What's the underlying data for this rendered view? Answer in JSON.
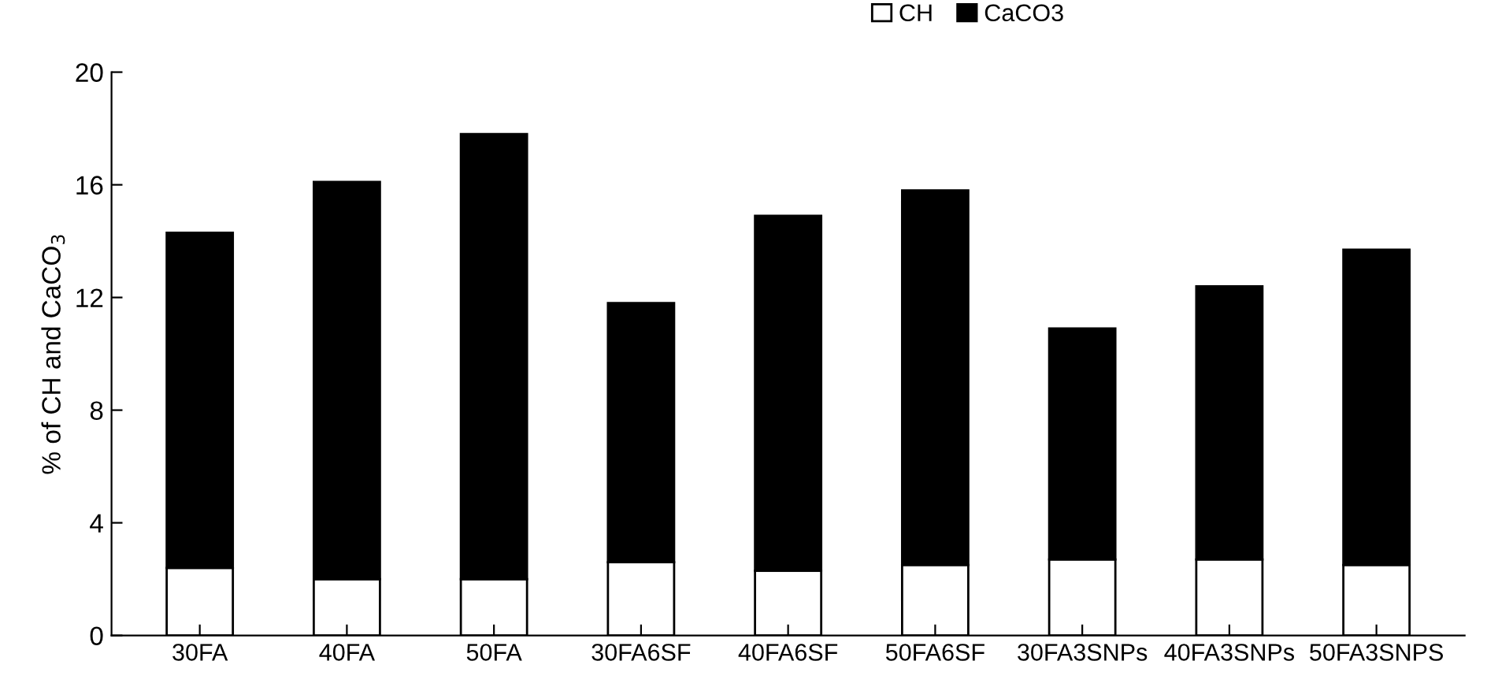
{
  "chart_data": {
    "type": "bar",
    "stacked": true,
    "ylabel": "% of CH and CaCO$_{3}$",
    "categories": [
      "30FA",
      "40FA",
      "50FA",
      "30FA6SF",
      "40FA6SF",
      "50FA6SF",
      "30FA3SNPs",
      "40FA3SNPs",
      "50FA3SNPS"
    ],
    "series": [
      {
        "name": "CH",
        "color": "#ffffff",
        "values": [
          2.4,
          2.0,
          2.0,
          2.6,
          2.3,
          2.5,
          2.7,
          2.7,
          2.5
        ]
      },
      {
        "name": "CaCO3",
        "color": "#000000",
        "values": [
          11.9,
          14.1,
          15.8,
          9.2,
          12.6,
          13.3,
          8.2,
          9.7,
          11.2
        ]
      }
    ],
    "ylim": [
      0,
      20
    ],
    "yticks": [
      0,
      4,
      8,
      12,
      16,
      20
    ],
    "grid": false,
    "legend": "top right"
  }
}
